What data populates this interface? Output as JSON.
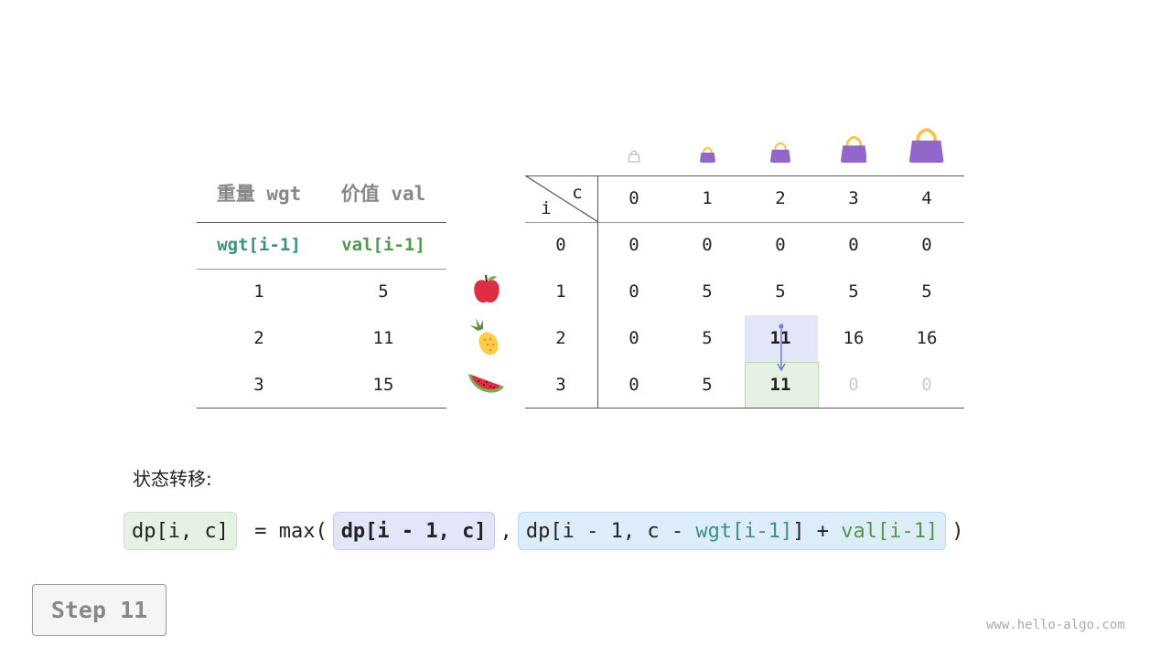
{
  "left_table": {
    "headers": [
      "重量 wgt",
      "价值 val"
    ],
    "subheaders": [
      "wgt[i-1]",
      "val[i-1]"
    ],
    "rows": [
      [
        "1",
        "5"
      ],
      [
        "2",
        "11"
      ],
      [
        "3",
        "15"
      ]
    ]
  },
  "items": [
    "apple-icon",
    "pineapple-icon",
    "watermelon-icon"
  ],
  "dp_table": {
    "corner_c": "c",
    "corner_i": "i",
    "col_headers": [
      "0",
      "1",
      "2",
      "3",
      "4"
    ],
    "row_headers": [
      "0",
      "1",
      "2",
      "3"
    ],
    "rows": [
      [
        "0",
        "0",
        "0",
        "0",
        "0"
      ],
      [
        "0",
        "5",
        "5",
        "5",
        "5"
      ],
      [
        "0",
        "5",
        "11",
        "16",
        "16"
      ],
      [
        "0",
        "5",
        "11",
        "0",
        "0"
      ]
    ],
    "highlight_source": {
      "row": 2,
      "col": 2,
      "color": "#e3e5f8"
    },
    "highlight_target": {
      "row": 3,
      "col": 2,
      "color": "#e5f2e3"
    },
    "pending_cells": [
      [
        3,
        3
      ],
      [
        3,
        4
      ]
    ]
  },
  "bag_color": "#9366cc",
  "transition_label": "状态转移:",
  "formula": {
    "lhs": "dp[i, c]",
    "eq": " = max(",
    "arg1": "dp[i - 1, c]",
    "comma": ",",
    "arg2_a": "dp[i - 1, c - ",
    "arg2_wgt": "wgt[i-1]",
    "arg2_b": "] + ",
    "arg2_val": "val[i-1]",
    "close": ")"
  },
  "step": "Step 11",
  "watermark": "www.hello-algo.com"
}
